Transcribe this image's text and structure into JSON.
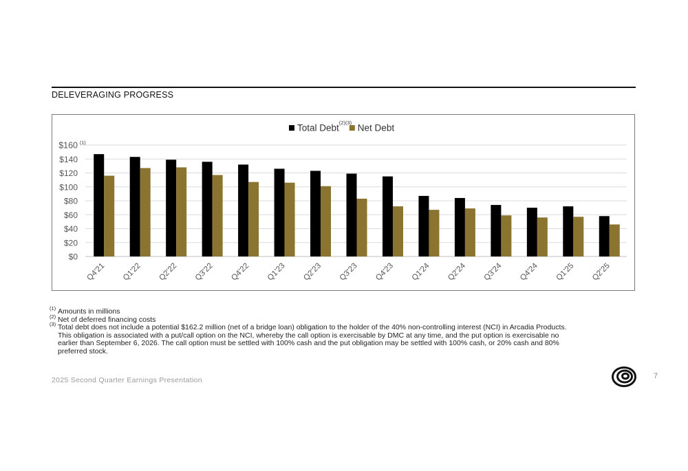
{
  "header": {
    "section_title": "DELEVERAGING PROGRESS"
  },
  "chart_data": {
    "type": "bar",
    "categories": [
      "Q4'21",
      "Q1'22",
      "Q2'22",
      "Q3'22",
      "Q4'22",
      "Q1'23",
      "Q2'23",
      "Q3'23",
      "Q4'23",
      "Q1'24",
      "Q2'24",
      "Q3'24",
      "Q4'24",
      "Q1'25",
      "Q2'25"
    ],
    "series": [
      {
        "name": "Total Debt",
        "superscript": "(2)(3)",
        "color": "#000000",
        "values": [
          147,
          143,
          139,
          136,
          132,
          126,
          123,
          119,
          115,
          87,
          84,
          74,
          70,
          72,
          58
        ]
      },
      {
        "name": "Net Debt",
        "superscript": "",
        "color": "#8b7430",
        "values": [
          116,
          127,
          128,
          117,
          107,
          106,
          101,
          83,
          72,
          67,
          69,
          59,
          56,
          57,
          46
        ]
      }
    ],
    "y_ticks": [
      "$0",
      "$20",
      "$40",
      "$60",
      "$80",
      "$100",
      "$120",
      "$140",
      "$160"
    ],
    "y_top_superscript": "(1)",
    "ylim": [
      0,
      160
    ],
    "grid": true,
    "legend_position": "top-center"
  },
  "footnotes": [
    {
      "marker": "(1)",
      "text": " Amounts in millions"
    },
    {
      "marker": "(2)",
      "text": "Net of deferred financing costs"
    },
    {
      "marker": "(3)",
      "text": "Total debt does not include a potential $162.2 million (net of a bridge loan) obligation to the holder of the 40% non-controlling interest (NCI) in Arcadia Products."
    },
    {
      "marker": "",
      "text": "This obligation is associated with a put/call option on the NCI, whereby the call option is exercisable by DMC at any time, and the put option is exercisable no"
    },
    {
      "marker": "",
      "text": "earlier than September 6, 2026. The call option must be settled with 100% cash and the put obligation may be settled with 100% cash, or 20% cash and 80%"
    },
    {
      "marker": "",
      "text": "preferred stock."
    }
  ],
  "footer": {
    "presentation_title": "2025 Second Quarter Earnings Presentation",
    "page_number": "7",
    "logo_icon": "concentric-swirl-logo-icon"
  }
}
